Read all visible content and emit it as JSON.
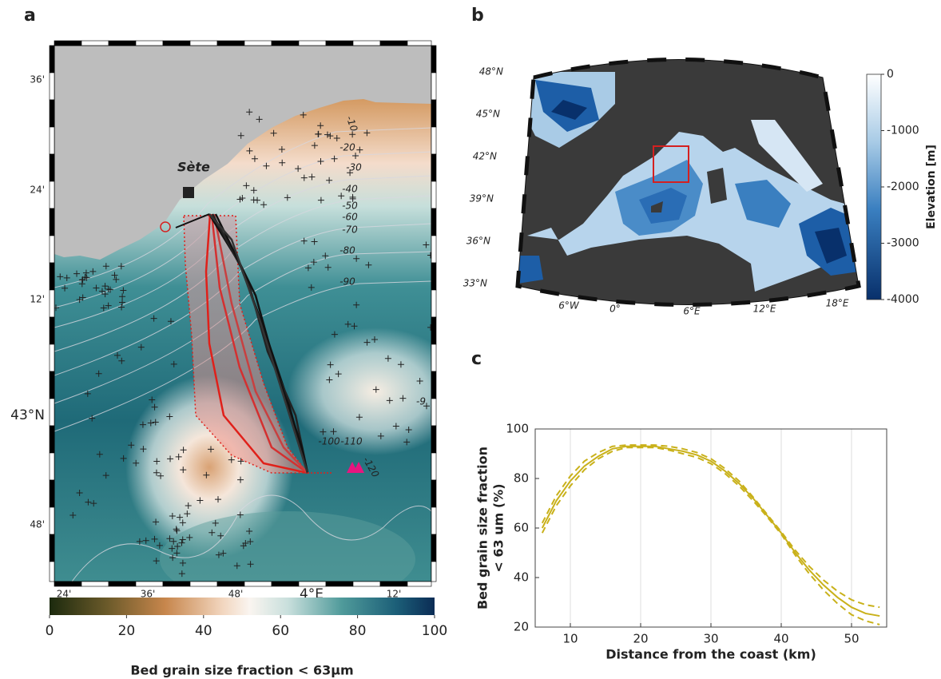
{
  "panel_a": {
    "label": "a",
    "place": "Sète",
    "lat_labels": [
      "36'",
      "24'",
      "12'",
      "43°N",
      "48'"
    ],
    "lon_labels": [
      "24'",
      "36'",
      "48'",
      "4°E",
      "12'"
    ],
    "contour_labels": [
      "-10",
      "-20",
      "-30",
      "-40",
      "-50",
      "-60",
      "-70",
      "-80",
      "-90",
      "-100",
      "-110",
      "-120",
      "-9"
    ],
    "colorbar": {
      "label": "Bed grain size fraction < 63µm",
      "lim": [
        0,
        100
      ],
      "ticks": [
        0,
        20,
        40,
        60,
        80,
        100
      ]
    }
  },
  "panel_b": {
    "label": "b",
    "lat_labels": [
      "48°N",
      "45°N",
      "42°N",
      "39°N",
      "36°N",
      "33°N"
    ],
    "lon_labels": [
      "6°W",
      "0°",
      "6°E",
      "12°E",
      "18°E"
    ],
    "colorbar": {
      "label": "Elevation [m]",
      "lim": [
        -4000,
        0
      ],
      "ticks": [
        0,
        -1000,
        -2000,
        -3000,
        -4000
      ]
    }
  },
  "panel_c_label": "c",
  "chart_data": {
    "type": "line",
    "xlabel": "Distance from the coast (km)",
    "ylabel": [
      "Bed grain size fraction",
      "< 63 um (%)"
    ],
    "x": [
      6,
      8,
      10,
      12,
      14,
      16,
      18,
      20,
      22,
      24,
      26,
      28,
      30,
      32,
      34,
      36,
      38,
      40,
      42,
      44,
      46,
      48,
      50,
      52,
      54
    ],
    "series": [
      {
        "color": "#c9b11a",
        "line_style": "solid",
        "values": [
          60,
          71,
          79,
          85,
          89,
          92,
          93,
          93,
          93,
          92,
          91,
          89.5,
          87,
          83,
          78,
          72,
          65,
          58,
          50,
          43,
          37,
          32,
          28,
          25.5,
          24.5
        ]
      },
      {
        "color": "#c9b11a",
        "line_style": "dashed",
        "values": [
          62,
          73,
          81,
          87,
          90.5,
          93,
          93.5,
          93.5,
          93.5,
          93,
          92,
          90.5,
          88,
          84,
          79,
          72.5,
          65.5,
          58.5,
          51,
          44.5,
          39,
          34.5,
          31,
          29,
          28
        ]
      },
      {
        "color": "#c9b11a",
        "line_style": "dashed",
        "values": [
          58,
          69,
          77,
          83.5,
          88,
          91,
          92.5,
          92.5,
          92.5,
          91.5,
          90,
          88.5,
          86,
          82,
          77,
          71,
          64.5,
          57.5,
          49,
          41.5,
          35,
          29.5,
          25,
          22.5,
          21
        ]
      }
    ],
    "xlim": [
      5,
      55
    ],
    "ylim": [
      20,
      100
    ],
    "xticks": [
      10,
      20,
      30,
      40,
      50
    ],
    "yticks": [
      20,
      40,
      60,
      80,
      100
    ],
    "grid": "x"
  }
}
